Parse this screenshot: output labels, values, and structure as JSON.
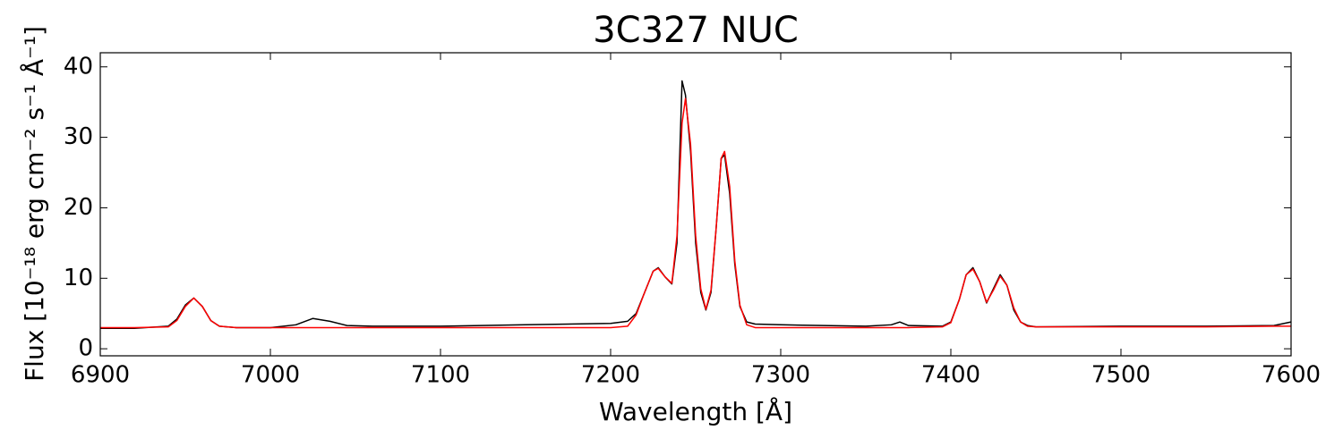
{
  "chart_data": {
    "type": "line",
    "title": "3C327 NUC",
    "xlabel": "Wavelength [Å]",
    "ylabel": "Flux [10⁻¹⁸ erg cm⁻² s⁻¹ Å⁻¹]",
    "x": [
      6900,
      6920,
      6940,
      6945,
      6950,
      6955,
      6960,
      6965,
      6970,
      6980,
      7000,
      7015,
      7025,
      7035,
      7045,
      7060,
      7100,
      7150,
      7200,
      7210,
      7215,
      7220,
      7225,
      7228,
      7232,
      7236,
      7239,
      7242,
      7244,
      7247,
      7250,
      7253,
      7256,
      7259,
      7262,
      7265,
      7267,
      7270,
      7273,
      7276,
      7280,
      7285,
      7300,
      7350,
      7365,
      7370,
      7375,
      7395,
      7400,
      7405,
      7409,
      7413,
      7417,
      7421,
      7425,
      7429,
      7433,
      7437,
      7441,
      7445,
      7450,
      7500,
      7550,
      7590,
      7600
    ],
    "series": [
      {
        "color": "#000000",
        "values": [
          2.9,
          2.9,
          3.2,
          4.2,
          6.2,
          7.2,
          6.0,
          4.0,
          3.2,
          3.0,
          3.0,
          3.4,
          4.3,
          3.9,
          3.3,
          3.2,
          3.2,
          3.4,
          3.6,
          3.9,
          5.0,
          8.0,
          11.0,
          11.5,
          10.2,
          9.2,
          15,
          38,
          36,
          28,
          15,
          8,
          5.5,
          8,
          17,
          27,
          27.5,
          22,
          12,
          6,
          3.8,
          3.5,
          3.4,
          3.2,
          3.4,
          3.8,
          3.3,
          3.2,
          3.8,
          7.0,
          10.5,
          11.5,
          9.5,
          6.5,
          8.5,
          10.5,
          9.0,
          5.5,
          3.8,
          3.3,
          3.1,
          3.2,
          3.2,
          3.3,
          3.8
        ]
      },
      {
        "color": "#ff0000",
        "values": [
          3.0,
          3.0,
          3.1,
          4.0,
          6.0,
          7.2,
          6.0,
          4.0,
          3.2,
          3.0,
          3.0,
          3.0,
          3.0,
          3.0,
          3.0,
          3.0,
          3.0,
          3.0,
          3.0,
          3.2,
          4.8,
          8.0,
          11.0,
          11.4,
          10.2,
          9.3,
          16,
          32,
          35.5,
          29,
          16,
          8.5,
          5.6,
          8.3,
          17,
          27,
          28,
          23,
          12.5,
          6.2,
          3.4,
          3.0,
          3.0,
          3.0,
          3.0,
          3.0,
          3.0,
          3.1,
          3.7,
          7.0,
          10.5,
          11.3,
          9.5,
          6.6,
          8.3,
          10.3,
          9.0,
          5.8,
          3.8,
          3.2,
          3.1,
          3.1,
          3.1,
          3.2,
          3.2
        ]
      }
    ],
    "xlim": [
      6900,
      7600
    ],
    "xticks": [
      6900,
      7000,
      7100,
      7200,
      7300,
      7400,
      7500,
      7600
    ],
    "ylim": [
      -1,
      42
    ],
    "yticks": [
      0,
      10,
      20,
      30,
      40
    ],
    "grid": false
  }
}
